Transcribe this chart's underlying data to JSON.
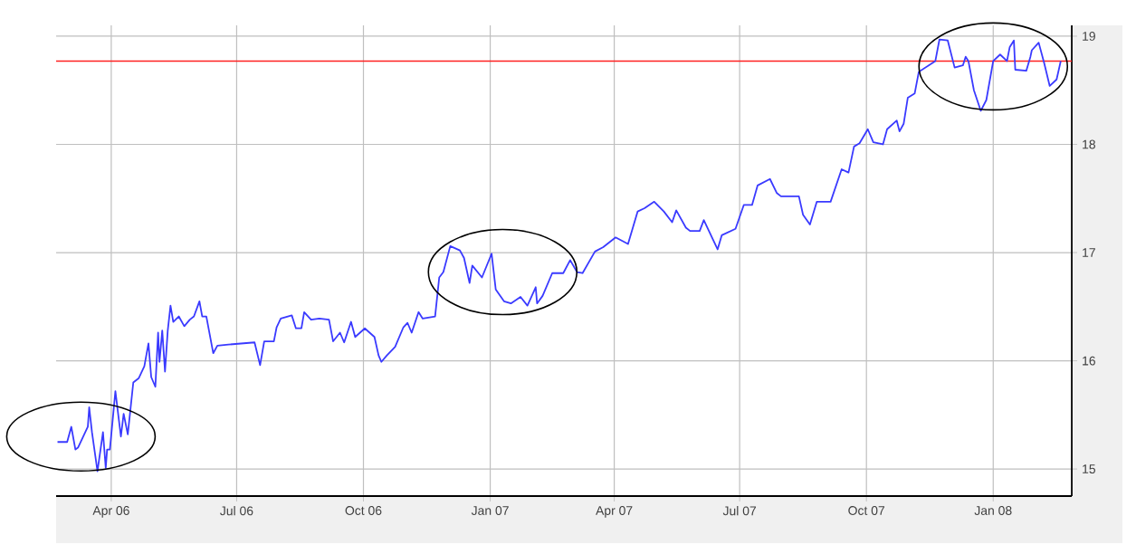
{
  "chart_data": {
    "type": "line",
    "x": [
      "2006-02-21",
      "2006-02-28",
      "2006-03-03",
      "2006-03-06",
      "2006-03-08",
      "2006-03-15",
      "2006-03-16",
      "2006-03-18",
      "2006-03-22",
      "2006-03-26",
      "2006-03-28",
      "2006-03-29",
      "2006-03-31",
      "2006-04-04",
      "2006-04-08",
      "2006-04-10",
      "2006-04-13",
      "2006-04-17",
      "2006-04-21",
      "2006-04-25",
      "2006-04-28",
      "2006-04-30",
      "2006-05-03",
      "2006-05-05",
      "2006-05-06",
      "2006-05-08",
      "2006-05-10",
      "2006-05-12",
      "2006-05-14",
      "2006-05-16",
      "2006-05-20",
      "2006-05-24",
      "2006-05-28",
      "2006-05-31",
      "2006-06-04",
      "2006-06-06",
      "2006-06-09",
      "2006-06-14",
      "2006-06-17",
      "2006-06-25",
      "2006-07-14",
      "2006-07-18",
      "2006-07-21",
      "2006-07-28",
      "2006-07-30",
      "2006-08-02",
      "2006-08-10",
      "2006-08-13",
      "2006-08-17",
      "2006-08-19",
      "2006-08-24",
      "2006-08-30",
      "2006-09-06",
      "2006-09-09",
      "2006-09-14",
      "2006-09-17",
      "2006-09-22",
      "2006-09-25",
      "2006-10-02",
      "2006-10-09",
      "2006-10-12",
      "2006-10-14",
      "2006-10-18",
      "2006-10-24",
      "2006-10-30",
      "2006-11-02",
      "2006-11-05",
      "2006-11-10",
      "2006-11-13",
      "2006-11-22",
      "2006-11-25",
      "2006-11-28",
      "2006-12-03",
      "2006-12-10",
      "2006-12-13",
      "2006-12-17",
      "2006-12-19",
      "2006-12-26",
      "2007-01-02",
      "2007-01-05",
      "2007-01-11",
      "2007-01-16",
      "2007-01-23",
      "2007-01-28",
      "2007-02-03",
      "2007-02-04",
      "2007-02-08",
      "2007-02-15",
      "2007-02-23",
      "2007-02-28",
      "2007-03-05",
      "2007-03-09",
      "2007-03-18",
      "2007-03-24",
      "2007-04-02",
      "2007-04-11",
      "2007-04-18",
      "2007-04-23",
      "2007-04-30",
      "2007-05-07",
      "2007-05-13",
      "2007-05-16",
      "2007-05-23",
      "2007-05-26",
      "2007-06-02",
      "2007-06-05",
      "2007-06-15",
      "2007-06-18",
      "2007-06-28",
      "2007-07-04",
      "2007-07-10",
      "2007-07-14",
      "2007-07-23",
      "2007-07-28",
      "2007-07-31",
      "2007-08-13",
      "2007-08-16",
      "2007-08-21",
      "2007-08-26",
      "2007-09-05",
      "2007-09-13",
      "2007-09-18",
      "2007-09-22",
      "2007-09-26",
      "2007-10-02",
      "2007-10-06",
      "2007-10-13",
      "2007-10-16",
      "2007-10-23",
      "2007-10-25",
      "2007-10-28",
      "2007-10-31",
      "2007-11-05",
      "2007-11-08",
      "2007-11-20",
      "2007-11-23",
      "2007-11-29",
      "2007-12-04",
      "2007-12-10",
      "2007-12-12",
      "2007-12-14",
      "2007-12-18",
      "2007-12-23",
      "2007-12-27",
      "2008-01-01",
      "2008-01-06",
      "2008-01-11",
      "2008-01-13",
      "2008-01-16",
      "2008-01-17",
      "2008-01-25",
      "2008-01-28",
      "2008-01-29",
      "2008-02-03",
      "2008-02-07",
      "2008-02-11",
      "2008-02-16",
      "2008-02-19"
    ],
    "series": [
      {
        "color": "#3a3aff",
        "values": [
          15.25,
          15.25,
          15.39,
          15.18,
          15.2,
          15.39,
          15.57,
          15.34,
          14.98,
          15.34,
          15.01,
          15.18,
          15.18,
          15.72,
          15.3,
          15.51,
          15.32,
          15.8,
          15.84,
          15.95,
          16.16,
          15.85,
          15.76,
          16.26,
          15.99,
          16.28,
          15.9,
          16.28,
          16.51,
          16.36,
          16.41,
          16.32,
          16.38,
          16.41,
          16.55,
          16.41,
          16.41,
          16.07,
          16.14,
          16.15,
          16.17,
          15.96,
          16.18,
          16.18,
          16.31,
          16.39,
          16.42,
          16.3,
          16.3,
          16.45,
          16.38,
          16.39,
          16.38,
          16.18,
          16.26,
          16.17,
          16.36,
          16.22,
          16.3,
          16.22,
          16.05,
          15.99,
          16.05,
          16.13,
          16.31,
          16.35,
          16.26,
          16.45,
          16.39,
          16.41,
          16.77,
          16.82,
          17.06,
          17.02,
          16.95,
          16.72,
          16.88,
          16.77,
          16.99,
          16.66,
          16.55,
          16.53,
          16.59,
          16.51,
          16.68,
          16.53,
          16.6,
          16.81,
          16.81,
          16.93,
          16.82,
          16.81,
          17.01,
          17.05,
          17.14,
          17.08,
          17.38,
          17.41,
          17.47,
          17.38,
          17.28,
          17.39,
          17.23,
          17.2,
          17.2,
          17.3,
          17.03,
          17.16,
          17.22,
          17.44,
          17.44,
          17.62,
          17.68,
          17.55,
          17.52,
          17.52,
          17.35,
          17.26,
          17.47,
          17.47,
          17.77,
          17.74,
          17.98,
          18.01,
          18.14,
          18.02,
          18.0,
          18.14,
          18.22,
          18.12,
          18.19,
          18.43,
          18.47,
          18.67,
          18.77,
          18.97,
          18.96,
          18.71,
          18.73,
          18.81,
          18.77,
          18.5,
          18.31,
          18.41,
          18.77,
          18.83,
          18.77,
          18.9,
          18.96,
          18.69,
          18.68,
          18.81,
          18.87,
          18.94,
          18.75,
          18.54,
          18.6,
          18.77
        ]
      }
    ],
    "xlim": [
      "2006-02-20",
      "2008-02-27"
    ],
    "ylim": [
      14.75,
      19.1
    ],
    "xticks": [
      {
        "value": "2006-04-01",
        "label": "Apr 06"
      },
      {
        "value": "2006-07-01",
        "label": "Jul 06"
      },
      {
        "value": "2006-10-01",
        "label": "Oct 06"
      },
      {
        "value": "2007-01-01",
        "label": "Jan 07"
      },
      {
        "value": "2007-04-01",
        "label": "Apr 07"
      },
      {
        "value": "2007-07-01",
        "label": "Jul 07"
      },
      {
        "value": "2007-10-01",
        "label": "Oct 07"
      },
      {
        "value": "2008-01-01",
        "label": "Jan 08"
      }
    ],
    "yticks": [
      15,
      16,
      17,
      18,
      19
    ],
    "ref_lines": [
      {
        "axis": "y",
        "value": 18.77,
        "color": "#ff2020"
      }
    ],
    "grid": true
  }
}
